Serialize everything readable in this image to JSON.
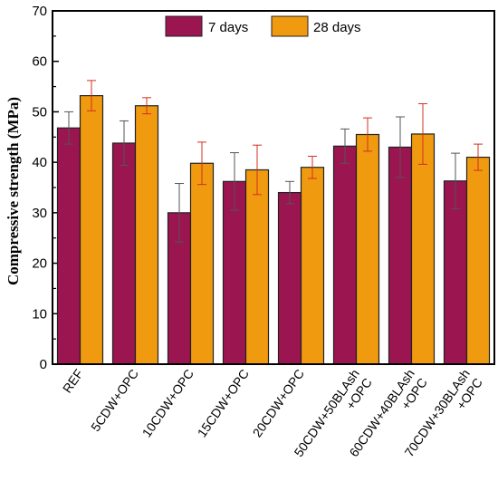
{
  "chart_data": {
    "type": "bar",
    "ylabel": "Compressive strength (MPa)",
    "xlabel": "",
    "ylim": [
      0,
      70
    ],
    "yticks": [
      0,
      10,
      20,
      30,
      40,
      50,
      60,
      70
    ],
    "legend_position": "top-center",
    "categories": [
      [
        "REF"
      ],
      [
        "5CDW+OPC"
      ],
      [
        "10CDW+OPC"
      ],
      [
        "15CDW+OPC"
      ],
      [
        "20CDW+OPC"
      ],
      [
        "50CDW+50BLAsh",
        "+OPC"
      ],
      [
        "60CDW+40BLAsh",
        "+OPC"
      ],
      [
        "70CDW+30BLAsh",
        "+OPC"
      ]
    ],
    "series": [
      {
        "name": "7 days",
        "color": "#9b1550",
        "values": [
          46.8,
          43.8,
          30.0,
          36.2,
          34.0,
          43.2,
          43.0,
          36.3
        ],
        "errors": [
          3.2,
          4.4,
          5.8,
          5.7,
          2.2,
          3.4,
          6.0,
          5.5
        ]
      },
      {
        "name": "28 days",
        "color": "#f09a10",
        "values": [
          53.2,
          51.2,
          39.8,
          38.5,
          39.0,
          45.5,
          45.6,
          41.0
        ],
        "errors": [
          3.0,
          1.6,
          4.2,
          4.9,
          2.2,
          3.3,
          6.0,
          2.6
        ]
      }
    ]
  }
}
